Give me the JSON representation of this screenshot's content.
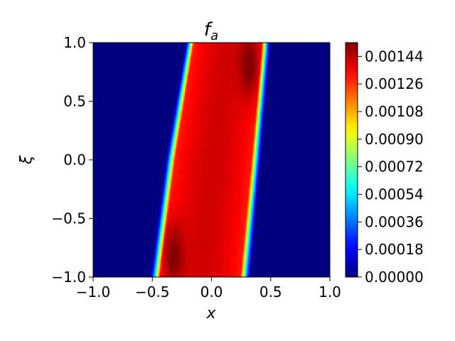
{
  "chart_data": {
    "type": "heatmap",
    "title_main": "f",
    "title_sub": "a",
    "xlabel": "x",
    "ylabel": "ξ",
    "xlim": [
      -1.0,
      1.0
    ],
    "ylim": [
      -1.0,
      1.0
    ],
    "xticks": [
      -1.0,
      -0.5,
      0.0,
      0.5,
      1.0
    ],
    "xtick_labels": [
      "−1.0",
      "−0.5",
      "0.0",
      "0.5",
      "1.0"
    ],
    "yticks": [
      -1.0,
      -0.5,
      0.0,
      0.5,
      1.0
    ],
    "ytick_labels": [
      "−1.0",
      "−0.5",
      "0.0",
      "0.5",
      "1.0"
    ],
    "colorbar": {
      "min": 0.0,
      "max": 0.00153,
      "colormap": "jet",
      "ticks": [
        0.0,
        0.00018,
        0.00036,
        0.00054,
        0.00072,
        0.0009,
        0.00108,
        0.00126,
        0.00144
      ],
      "tick_labels": [
        "0.00000",
        "0.00018",
        "0.00036",
        "0.00054",
        "0.00072",
        "0.00090",
        "0.00108",
        "0.00126",
        "0.00144"
      ]
    },
    "field": {
      "description_of_shape": "band of nonzero values tilted from lower-left to upper-right",
      "left_edge_at_xi": [
        [
          -1.0,
          -0.52
        ],
        [
          0.0,
          -0.39
        ],
        [
          1.0,
          -0.22
        ]
      ],
      "right_edge_at_xi": [
        [
          -1.0,
          0.33
        ],
        [
          0.0,
          0.42
        ],
        [
          1.0,
          0.5
        ]
      ],
      "peak_value": 0.00153,
      "peak_locations": [
        [
          -0.33,
          -0.8
        ],
        [
          0.33,
          0.8
        ]
      ]
    }
  }
}
